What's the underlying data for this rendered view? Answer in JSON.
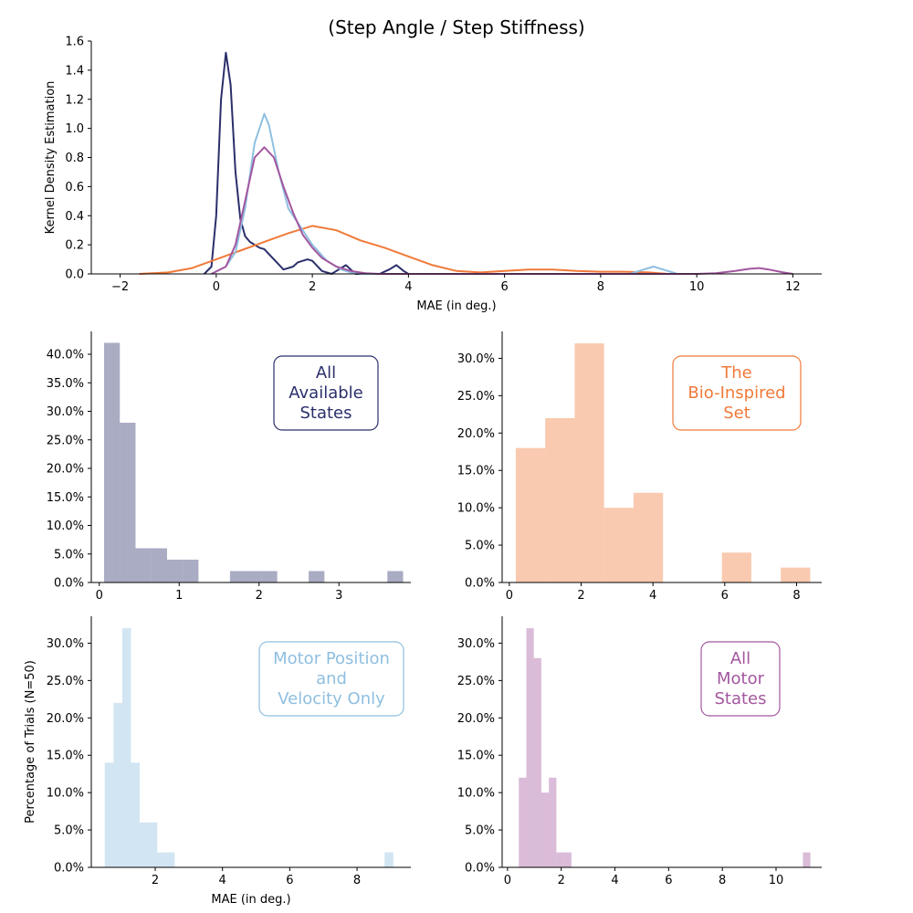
{
  "title": "(Step Angle / Step Stiffness)",
  "colors": {
    "all_states": "#2b2f6b",
    "bio_inspired": "#f07a3a",
    "motor_pos_vel": "#8fbfe0",
    "all_motor": "#a3579f"
  },
  "chart_data": [
    {
      "type": "line",
      "panel": "kde",
      "xlabel": "MAE (in deg.)",
      "ylabel": "Kernel Density Estimation",
      "xlim": [
        -2.6,
        12.6
      ],
      "ylim": [
        0,
        1.6
      ],
      "xticks": [
        -2,
        0,
        2,
        4,
        6,
        8,
        10,
        12
      ],
      "xtick_labels": [
        "−2",
        "0",
        "2",
        "4",
        "6",
        "8",
        "10",
        "12"
      ],
      "yticks": [
        0.0,
        0.2,
        0.4,
        0.6,
        0.8,
        1.0,
        1.2,
        1.4,
        1.6
      ],
      "ytick_labels": [
        "0.0",
        "0.2",
        "0.4",
        "0.6",
        "0.8",
        "1.0",
        "1.2",
        "1.4",
        "1.6"
      ],
      "series": [
        {
          "key": "all_states",
          "x": [
            -0.25,
            -0.1,
            0.0,
            0.1,
            0.2,
            0.3,
            0.4,
            0.5,
            0.6,
            0.7,
            0.8,
            0.9,
            1.0,
            1.2,
            1.4,
            1.6,
            1.7,
            1.9,
            2.0,
            2.2,
            2.4,
            2.5,
            2.7,
            2.8,
            2.9,
            3.0,
            3.4,
            3.6,
            3.75,
            3.9,
            4.0
          ],
          "y": [
            0.0,
            0.05,
            0.4,
            1.2,
            1.52,
            1.3,
            0.7,
            0.38,
            0.26,
            0.22,
            0.2,
            0.18,
            0.17,
            0.1,
            0.03,
            0.05,
            0.08,
            0.1,
            0.09,
            0.02,
            0.0,
            0.02,
            0.06,
            0.03,
            0.0,
            0.0,
            0.0,
            0.03,
            0.06,
            0.02,
            0.0
          ]
        },
        {
          "key": "bio_inspired",
          "x": [
            -1.6,
            -1.0,
            -0.5,
            0.0,
            0.5,
            1.0,
            1.5,
            2.0,
            2.5,
            3.0,
            3.5,
            4.0,
            4.5,
            5.0,
            5.5,
            6.0,
            6.5,
            7.0,
            7.5,
            8.0,
            8.5,
            9.0,
            9.4
          ],
          "y": [
            0.0,
            0.01,
            0.04,
            0.1,
            0.16,
            0.22,
            0.28,
            0.33,
            0.3,
            0.23,
            0.18,
            0.12,
            0.06,
            0.02,
            0.01,
            0.02,
            0.03,
            0.03,
            0.02,
            0.015,
            0.015,
            0.01,
            0.0
          ]
        },
        {
          "key": "motor_pos_vel",
          "x": [
            -0.1,
            0.2,
            0.4,
            0.6,
            0.8,
            1.0,
            1.1,
            1.3,
            1.5,
            1.8,
            2.0,
            2.3,
            2.6,
            2.8,
            3.0,
            3.2,
            8.6,
            8.9,
            9.1,
            9.3,
            9.6
          ],
          "y": [
            0.0,
            0.05,
            0.15,
            0.45,
            0.9,
            1.1,
            1.02,
            0.7,
            0.45,
            0.3,
            0.2,
            0.09,
            0.03,
            0.01,
            0.0,
            0.0,
            0.0,
            0.03,
            0.05,
            0.03,
            0.0
          ]
        },
        {
          "key": "all_motor",
          "x": [
            -0.1,
            0.2,
            0.4,
            0.6,
            0.8,
            1.0,
            1.2,
            1.4,
            1.6,
            1.8,
            2.0,
            2.2,
            2.5,
            2.8,
            3.1,
            3.4,
            10.0,
            10.4,
            10.8,
            11.1,
            11.3,
            11.5,
            11.8,
            12.0
          ],
          "y": [
            0.0,
            0.05,
            0.2,
            0.5,
            0.8,
            0.87,
            0.8,
            0.6,
            0.42,
            0.27,
            0.18,
            0.11,
            0.05,
            0.02,
            0.005,
            0.0,
            0.0,
            0.005,
            0.02,
            0.035,
            0.04,
            0.03,
            0.01,
            0.0
          ]
        }
      ]
    },
    {
      "type": "bar",
      "panel": "hist-all-states",
      "key": "all_states",
      "label": "All\nAvailable\nStates",
      "xlim": [
        -0.1,
        3.9
      ],
      "ylim": [
        0,
        44
      ],
      "xticks": [
        0,
        1,
        2,
        3
      ],
      "xtick_labels": [
        "0",
        "1",
        "2",
        "3"
      ],
      "yticks": [
        0,
        5,
        10,
        15,
        20,
        25,
        30,
        35,
        40
      ],
      "ytick_labels": [
        "0.0%",
        "5.0%",
        "10.0%",
        "15.0%",
        "20.0%",
        "25.0%",
        "30.0%",
        "35.0%",
        "40.0%"
      ],
      "bin_edges": [
        0.06,
        0.257,
        0.454,
        0.651,
        0.848,
        1.045,
        1.242,
        1.439,
        1.636,
        1.833,
        2.03,
        2.227,
        2.424,
        2.621,
        2.818,
        3.015,
        3.212,
        3.409,
        3.606,
        3.803
      ],
      "values": [
        42,
        28,
        6,
        6,
        4,
        4,
        0,
        0,
        2,
        2,
        2,
        0,
        0,
        2,
        0,
        0,
        0,
        0,
        2
      ]
    },
    {
      "type": "bar",
      "panel": "hist-bio-inspired",
      "key": "bio_inspired",
      "label": "The\nBio-Inspired\nSet",
      "xlim": [
        -0.2,
        8.7
      ],
      "ylim": [
        0,
        33.6
      ],
      "xticks": [
        0,
        2,
        4,
        6,
        8
      ],
      "xtick_labels": [
        "0",
        "2",
        "4",
        "6",
        "8"
      ],
      "yticks": [
        0,
        5,
        10,
        15,
        20,
        25,
        30
      ],
      "ytick_labels": [
        "0.0%",
        "5.0%",
        "10.0%",
        "15.0%",
        "20.0%",
        "25.0%",
        "30.0%"
      ],
      "bin_edges": [
        0.18,
        1.0,
        1.82,
        2.64,
        3.46,
        4.28,
        5.1,
        5.92,
        6.74,
        7.56,
        8.38
      ],
      "values": [
        18,
        22,
        32,
        10,
        12,
        0,
        0,
        4,
        0,
        2
      ]
    },
    {
      "type": "bar",
      "panel": "hist-motor-pos-vel",
      "key": "motor_pos_vel",
      "label": "Motor Position\nand\nVelocity Only",
      "xlabel": "MAE (in deg.)",
      "ylabel": "Percentage of Trials (N=50)",
      "xlim": [
        0.1,
        9.6
      ],
      "ylim": [
        0,
        33.6
      ],
      "xticks": [
        2,
        4,
        6,
        8
      ],
      "xtick_labels": [
        "2",
        "4",
        "6",
        "8"
      ],
      "yticks": [
        0,
        5,
        10,
        15,
        20,
        25,
        30
      ],
      "ytick_labels": [
        "0.0%",
        "5.0%",
        "10.0%",
        "15.0%",
        "20.0%",
        "25.0%",
        "30.0%"
      ],
      "bin_edges": [
        0.5,
        0.76,
        1.02,
        1.28,
        1.54,
        1.8,
        2.06,
        2.32,
        2.58,
        8.82,
        9.08
      ],
      "values": [
        14,
        22,
        32,
        14,
        6,
        6,
        2,
        2,
        0,
        2
      ]
    },
    {
      "type": "bar",
      "panel": "hist-all-motor",
      "key": "all_motor",
      "label": "All\nMotor\nStates",
      "xlim": [
        -0.2,
        11.7
      ],
      "ylim": [
        0,
        33.6
      ],
      "xticks": [
        0,
        2,
        4,
        6,
        8,
        10
      ],
      "xtick_labels": [
        "0",
        "2",
        "4",
        "6",
        "8",
        "10"
      ],
      "yticks": [
        0,
        5,
        10,
        15,
        20,
        25,
        30
      ],
      "ytick_labels": [
        "0.0%",
        "5.0%",
        "10.0%",
        "15.0%",
        "20.0%",
        "25.0%",
        "30.0%"
      ],
      "bin_edges": [
        0.42,
        0.7,
        0.98,
        1.26,
        1.54,
        1.82,
        2.1,
        2.38,
        2.66,
        11.0,
        11.28
      ],
      "values": [
        12,
        32,
        28,
        10,
        12,
        2,
        2,
        0,
        0,
        2
      ]
    }
  ]
}
